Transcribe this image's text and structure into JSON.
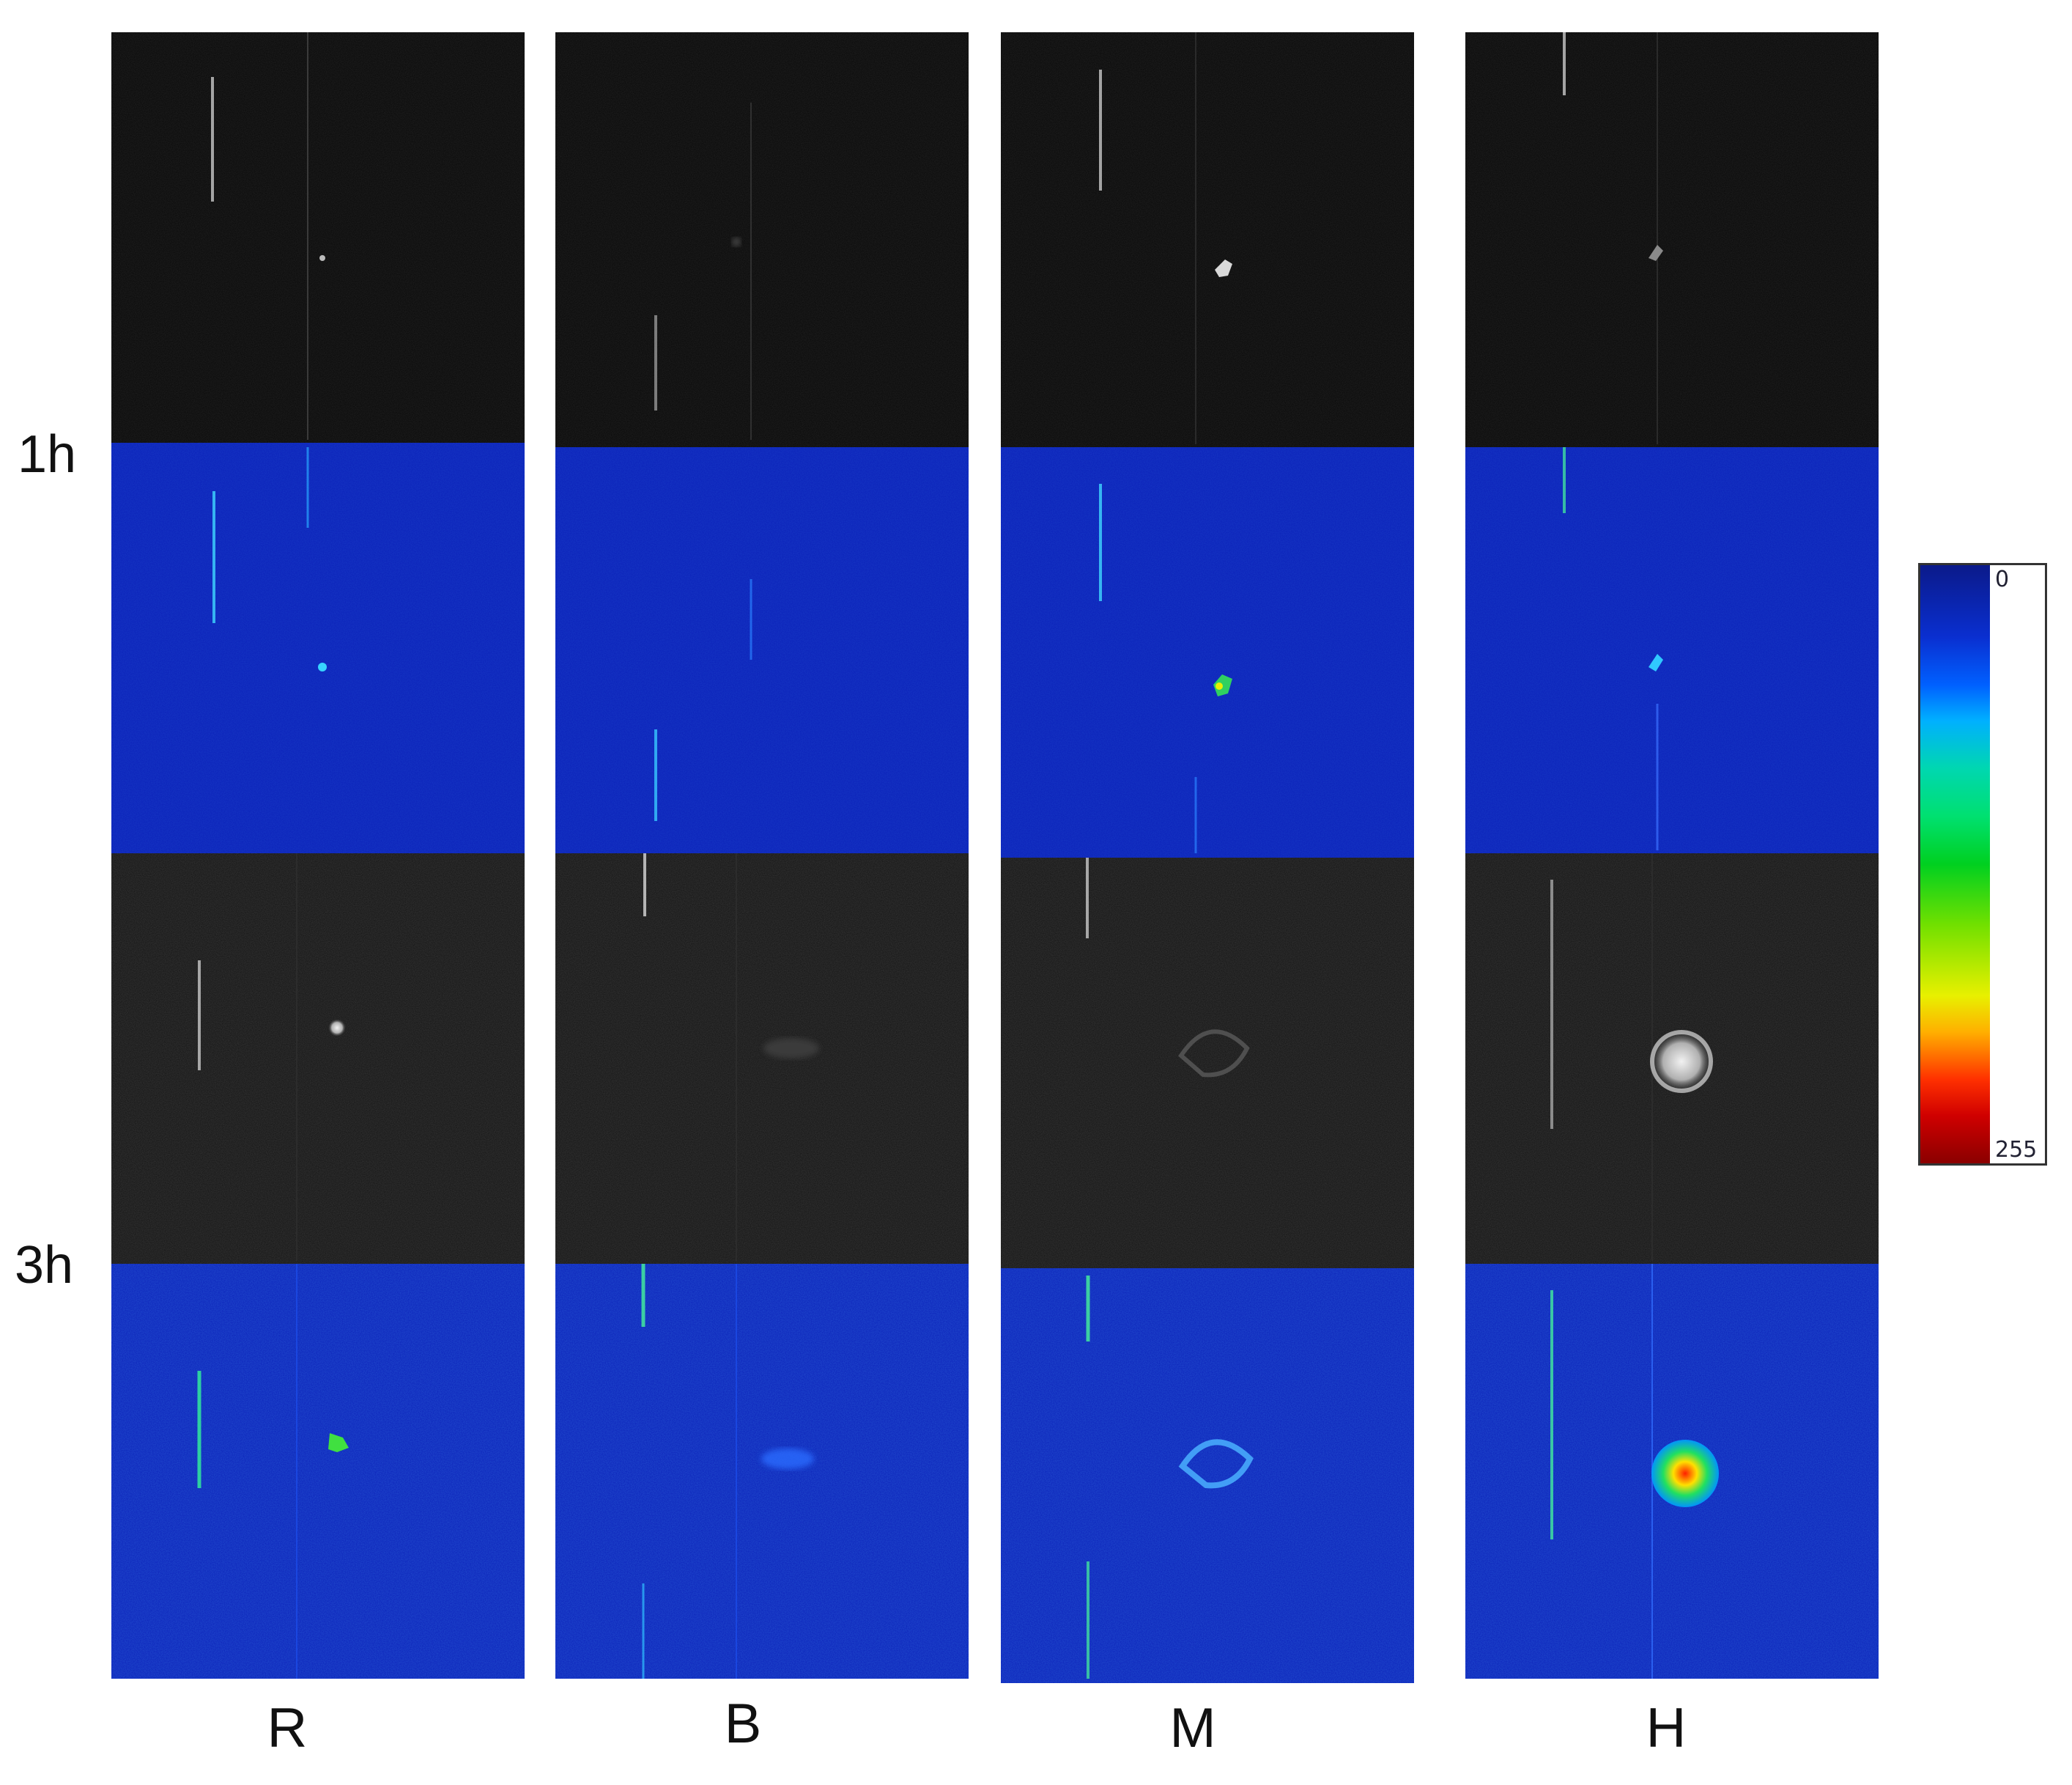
{
  "row_labels": [
    "1h",
    "3h"
  ],
  "col_labels": [
    "R",
    "B",
    "M",
    "H"
  ],
  "colorbar": {
    "min_label": "0",
    "max_label": "255"
  },
  "colors": {
    "pseudo_background": "#0a1fb8",
    "gray_background": "#0a0a0a"
  }
}
